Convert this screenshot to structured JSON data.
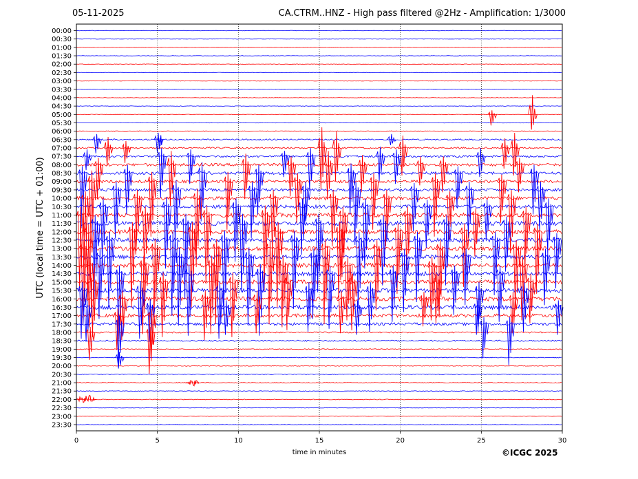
{
  "header": {
    "date": "05-11-2025",
    "title": "CA.CTRM..HNZ - High pass filtered @2Hz - Amplification: 1/3000"
  },
  "credit": "©ICGC 2025",
  "chart_data": {
    "type": "line",
    "subtype": "helicorder",
    "xlabel": "time in minutes",
    "ylabel": "UTC (local time = UTC + 01:00)",
    "xlim": [
      0,
      30
    ],
    "xticks": [
      0,
      5,
      10,
      15,
      20,
      25,
      30
    ],
    "grid": "vertical dotted lines at 5, 10, 15, 20, 25",
    "trace_colors": [
      "#ff0000",
      "#0000ff"
    ],
    "row_labels": [
      "00:00",
      "00:30",
      "01:00",
      "01:30",
      "02:00",
      "02:30",
      "03:00",
      "03:30",
      "04:00",
      "04:30",
      "05:00",
      "05:30",
      "06:00",
      "06:30",
      "07:00",
      "07:30",
      "08:00",
      "08:30",
      "09:00",
      "09:30",
      "10:00",
      "10:30",
      "11:00",
      "11:30",
      "12:00",
      "12:30",
      "13:00",
      "13:30",
      "14:00",
      "14:30",
      "15:00",
      "15:30",
      "16:00",
      "16:30",
      "17:00",
      "17:30",
      "18:00",
      "18:30",
      "19:00",
      "19:30",
      "20:00",
      "20:30",
      "21:00",
      "21:30",
      "22:00",
      "22:30",
      "23:00",
      "23:30"
    ],
    "row_colors": [
      "#0000ff",
      "#0000ff",
      "#ff0000",
      "#0000ff",
      "#ff0000",
      "#0000ff",
      "#ff0000",
      "#0000ff",
      "#ff0000",
      "#0000ff",
      "#ff0000",
      "#0000ff",
      "#ff0000",
      "#0000ff",
      "#ff0000",
      "#0000ff",
      "#ff0000",
      "#0000ff",
      "#ff0000",
      "#0000ff",
      "#ff0000",
      "#0000ff",
      "#ff0000",
      "#0000ff",
      "#ff0000",
      "#0000ff",
      "#ff0000",
      "#0000ff",
      "#ff0000",
      "#0000ff",
      "#ff0000",
      "#0000ff",
      "#ff0000",
      "#0000ff",
      "#ff0000",
      "#0000ff",
      "#ff0000",
      "#0000ff",
      "#ff0000",
      "#0000ff",
      "#ff0000",
      "#0000ff",
      "#ff0000",
      "#0000ff",
      "#ff0000",
      "#0000ff",
      "#ff0000",
      "#0000ff"
    ],
    "row_noise": [
      0.3,
      0.3,
      0.3,
      0.3,
      0.3,
      0.3,
      0.3,
      0.3,
      0.3,
      0.3,
      0.3,
      0.2,
      0.6,
      1.0,
      1.2,
      1.5,
      2.0,
      2.0,
      2.0,
      2.0,
      2.5,
      2.5,
      3.0,
      3.0,
      3.0,
      3.0,
      3.0,
      3.0,
      3.0,
      3.0,
      3.0,
      3.0,
      3.0,
      3.0,
      2.5,
      2.0,
      1.0,
      1.0,
      0.6,
      0.5,
      0.5,
      0.5,
      0.5,
      0.5,
      0.5,
      0.3,
      0.3,
      0.3
    ],
    "spikes": [
      {
        "row": 10,
        "x": 25.6,
        "up": 6,
        "down": 16
      },
      {
        "row": 10,
        "x": 28.1,
        "up": 28,
        "down": 22
      },
      {
        "row": 13,
        "x": 1.2,
        "up": 8,
        "down": 20
      },
      {
        "row": 13,
        "x": 5.0,
        "up": 10,
        "down": 20
      },
      {
        "row": 13,
        "x": 19.4,
        "up": 8,
        "down": 8
      },
      {
        "row": 14,
        "x": 1.9,
        "up": 16,
        "down": 26
      },
      {
        "row": 14,
        "x": 3.0,
        "up": 10,
        "down": 22
      },
      {
        "row": 14,
        "x": 15.1,
        "up": 30,
        "down": 60
      },
      {
        "row": 14,
        "x": 16.0,
        "up": 24,
        "down": 48
      },
      {
        "row": 14,
        "x": 20.1,
        "up": 18,
        "down": 40
      },
      {
        "row": 14,
        "x": 26.4,
        "up": 14,
        "down": 30
      },
      {
        "row": 14,
        "x": 27.0,
        "up": 22,
        "down": 40
      },
      {
        "row": 15,
        "x": 0.6,
        "up": 10,
        "down": 20
      },
      {
        "row": 15,
        "x": 5.2,
        "up": 12,
        "down": 60
      },
      {
        "row": 15,
        "x": 7.0,
        "up": 10,
        "down": 40
      },
      {
        "row": 15,
        "x": 12.8,
        "up": 8,
        "down": 30
      },
      {
        "row": 15,
        "x": 14.4,
        "up": 12,
        "down": 50
      },
      {
        "row": 15,
        "x": 18.7,
        "up": 14,
        "down": 36
      },
      {
        "row": 15,
        "x": 19.7,
        "up": 10,
        "down": 40
      },
      {
        "row": 15,
        "x": 24.9,
        "up": 12,
        "down": 30
      },
      {
        "row": 16,
        "x": 1.3,
        "up": 10,
        "down": 50
      },
      {
        "row": 16,
        "x": 5.8,
        "up": 20,
        "down": 60
      },
      {
        "row": 16,
        "x": 10.4,
        "up": 16,
        "down": 50
      },
      {
        "row": 16,
        "x": 13.2,
        "up": 12,
        "down": 46
      },
      {
        "row": 16,
        "x": 15.5,
        "up": 20,
        "down": 50
      },
      {
        "row": 16,
        "x": 17.6,
        "up": 14,
        "down": 40
      },
      {
        "row": 16,
        "x": 21.2,
        "up": 12,
        "down": 30
      },
      {
        "row": 16,
        "x": 22.6,
        "up": 12,
        "down": 40
      },
      {
        "row": 16,
        "x": 27.3,
        "up": 10,
        "down": 40
      },
      {
        "row": 17,
        "x": 0.3,
        "up": 10,
        "down": 80
      },
      {
        "row": 17,
        "x": 3.1,
        "up": 12,
        "down": 60
      },
      {
        "row": 17,
        "x": 7.7,
        "up": 16,
        "down": 70
      },
      {
        "row": 17,
        "x": 11.2,
        "up": 12,
        "down": 60
      },
      {
        "row": 17,
        "x": 16.9,
        "up": 14,
        "down": 60
      },
      {
        "row": 17,
        "x": 23.5,
        "up": 10,
        "down": 50
      },
      {
        "row": 17,
        "x": 28.2,
        "up": 12,
        "down": 60
      },
      {
        "row": 18,
        "x": 0.9,
        "up": 16,
        "down": 90
      },
      {
        "row": 18,
        "x": 4.6,
        "up": 14,
        "down": 80
      },
      {
        "row": 18,
        "x": 9.3,
        "up": 14,
        "down": 70
      },
      {
        "row": 18,
        "x": 13.6,
        "up": 12,
        "down": 60
      },
      {
        "row": 18,
        "x": 18.3,
        "up": 12,
        "down": 70
      },
      {
        "row": 18,
        "x": 22.1,
        "up": 12,
        "down": 80
      },
      {
        "row": 18,
        "x": 26.2,
        "up": 10,
        "down": 60
      },
      {
        "row": 19,
        "x": 2.4,
        "up": 12,
        "down": 70
      },
      {
        "row": 19,
        "x": 6.1,
        "up": 14,
        "down": 80
      },
      {
        "row": 19,
        "x": 10.8,
        "up": 12,
        "down": 70
      },
      {
        "row": 19,
        "x": 14.1,
        "up": 12,
        "down": 50
      },
      {
        "row": 19,
        "x": 17.2,
        "up": 12,
        "down": 80
      },
      {
        "row": 19,
        "x": 20.8,
        "up": 10,
        "down": 60
      },
      {
        "row": 19,
        "x": 24.2,
        "up": 12,
        "down": 70
      },
      {
        "row": 19,
        "x": 28.6,
        "up": 12,
        "down": 60
      },
      {
        "row": 20,
        "x": 0.5,
        "up": 10,
        "down": 90
      },
      {
        "row": 20,
        "x": 3.7,
        "up": 12,
        "down": 70
      },
      {
        "row": 20,
        "x": 7.4,
        "up": 14,
        "down": 100
      },
      {
        "row": 20,
        "x": 12.1,
        "up": 12,
        "down": 80
      },
      {
        "row": 20,
        "x": 15.8,
        "up": 12,
        "down": 70
      },
      {
        "row": 20,
        "x": 19.1,
        "up": 12,
        "down": 70
      },
      {
        "row": 20,
        "x": 23.0,
        "up": 10,
        "down": 60
      },
      {
        "row": 20,
        "x": 26.8,
        "up": 12,
        "down": 80
      },
      {
        "row": 21,
        "x": 1.6,
        "up": 12,
        "down": 80
      },
      {
        "row": 21,
        "x": 5.5,
        "up": 14,
        "down": 90
      },
      {
        "row": 21,
        "x": 9.8,
        "up": 12,
        "down": 80
      },
      {
        "row": 21,
        "x": 13.9,
        "up": 12,
        "down": 70
      },
      {
        "row": 21,
        "x": 17.8,
        "up": 12,
        "down": 90
      },
      {
        "row": 21,
        "x": 21.6,
        "up": 10,
        "down": 60
      },
      {
        "row": 21,
        "x": 25.3,
        "up": 10,
        "down": 50
      },
      {
        "row": 21,
        "x": 29.1,
        "up": 12,
        "down": 70
      },
      {
        "row": 22,
        "x": 0.2,
        "up": 12,
        "down": 110
      },
      {
        "row": 22,
        "x": 4.2,
        "up": 12,
        "down": 80
      },
      {
        "row": 22,
        "x": 8.0,
        "up": 14,
        "down": 100
      },
      {
        "row": 22,
        "x": 11.6,
        "up": 14,
        "down": 110
      },
      {
        "row": 22,
        "x": 16.4,
        "up": 12,
        "down": 90
      },
      {
        "row": 22,
        "x": 20.4,
        "up": 12,
        "down": 80
      },
      {
        "row": 22,
        "x": 24.6,
        "up": 10,
        "down": 60
      },
      {
        "row": 22,
        "x": 27.7,
        "up": 12,
        "down": 80
      },
      {
        "row": 23,
        "x": 1.1,
        "up": 12,
        "down": 110
      },
      {
        "row": 23,
        "x": 6.7,
        "up": 14,
        "down": 110
      },
      {
        "row": 23,
        "x": 10.2,
        "up": 14,
        "down": 100
      },
      {
        "row": 23,
        "x": 14.9,
        "up": 14,
        "down": 100
      },
      {
        "row": 23,
        "x": 18.9,
        "up": 12,
        "down": 90
      },
      {
        "row": 23,
        "x": 22.8,
        "up": 12,
        "down": 90
      },
      {
        "row": 23,
        "x": 26.5,
        "up": 10,
        "down": 70
      },
      {
        "row": 24,
        "x": 0.7,
        "up": 12,
        "down": 100
      },
      {
        "row": 24,
        "x": 3.4,
        "up": 14,
        "down": 110
      },
      {
        "row": 24,
        "x": 7.1,
        "up": 14,
        "down": 110
      },
      {
        "row": 24,
        "x": 12.4,
        "up": 14,
        "down": 110
      },
      {
        "row": 24,
        "x": 16.2,
        "up": 14,
        "down": 100
      },
      {
        "row": 24,
        "x": 19.8,
        "up": 12,
        "down": 90
      },
      {
        "row": 24,
        "x": 23.9,
        "up": 12,
        "down": 80
      },
      {
        "row": 24,
        "x": 28.4,
        "up": 12,
        "down": 90
      },
      {
        "row": 25,
        "x": 2.0,
        "up": 12,
        "down": 100
      },
      {
        "row": 25,
        "x": 5.9,
        "up": 14,
        "down": 110
      },
      {
        "row": 25,
        "x": 9.1,
        "up": 14,
        "down": 110
      },
      {
        "row": 25,
        "x": 13.4,
        "up": 14,
        "down": 100
      },
      {
        "row": 25,
        "x": 17.4,
        "up": 12,
        "down": 100
      },
      {
        "row": 25,
        "x": 21.0,
        "up": 12,
        "down": 90
      },
      {
        "row": 25,
        "x": 25.8,
        "up": 12,
        "down": 80
      },
      {
        "row": 25,
        "x": 29.6,
        "up": 10,
        "down": 70
      },
      {
        "row": 26,
        "x": 0.4,
        "up": 12,
        "down": 110
      },
      {
        "row": 26,
        "x": 4.8,
        "up": 14,
        "down": 110
      },
      {
        "row": 26,
        "x": 8.6,
        "up": 14,
        "down": 110
      },
      {
        "row": 26,
        "x": 11.9,
        "up": 14,
        "down": 110
      },
      {
        "row": 26,
        "x": 15.3,
        "up": 14,
        "down": 110
      },
      {
        "row": 26,
        "x": 18.5,
        "up": 12,
        "down": 90
      },
      {
        "row": 26,
        "x": 22.4,
        "up": 12,
        "down": 100
      },
      {
        "row": 26,
        "x": 27.1,
        "up": 12,
        "down": 90
      },
      {
        "row": 27,
        "x": 1.4,
        "up": 12,
        "down": 90
      },
      {
        "row": 27,
        "x": 6.3,
        "up": 14,
        "down": 100
      },
      {
        "row": 27,
        "x": 10.6,
        "up": 14,
        "down": 100
      },
      {
        "row": 27,
        "x": 14.6,
        "up": 12,
        "down": 90
      },
      {
        "row": 27,
        "x": 20.2,
        "up": 12,
        "down": 80
      },
      {
        "row": 27,
        "x": 24.0,
        "up": 12,
        "down": 70
      },
      {
        "row": 27,
        "x": 28.9,
        "up": 12,
        "down": 70
      },
      {
        "row": 28,
        "x": 0.8,
        "up": 12,
        "down": 90
      },
      {
        "row": 28,
        "x": 4.1,
        "up": 14,
        "down": 100
      },
      {
        "row": 28,
        "x": 8.3,
        "up": 14,
        "down": 100
      },
      {
        "row": 28,
        "x": 12.7,
        "up": 14,
        "down": 90
      },
      {
        "row": 28,
        "x": 16.7,
        "up": 12,
        "down": 80
      },
      {
        "row": 28,
        "x": 21.9,
        "up": 12,
        "down": 80
      },
      {
        "row": 28,
        "x": 27.5,
        "up": 12,
        "down": 80
      },
      {
        "row": 29,
        "x": 2.6,
        "up": 12,
        "down": 90
      },
      {
        "row": 29,
        "x": 6.9,
        "up": 14,
        "down": 90
      },
      {
        "row": 29,
        "x": 11.3,
        "up": 14,
        "down": 90
      },
      {
        "row": 29,
        "x": 15.6,
        "up": 12,
        "down": 80
      },
      {
        "row": 29,
        "x": 19.5,
        "up": 12,
        "down": 70
      },
      {
        "row": 29,
        "x": 23.3,
        "up": 12,
        "down": 60
      },
      {
        "row": 29,
        "x": 26.1,
        "up": 12,
        "down": 70
      },
      {
        "row": 30,
        "x": 1.0,
        "up": 12,
        "down": 80
      },
      {
        "row": 30,
        "x": 5.3,
        "up": 14,
        "down": 80
      },
      {
        "row": 30,
        "x": 9.6,
        "up": 14,
        "down": 80
      },
      {
        "row": 30,
        "x": 13.0,
        "up": 12,
        "down": 70
      },
      {
        "row": 30,
        "x": 17.0,
        "up": 12,
        "down": 70
      },
      {
        "row": 30,
        "x": 22.2,
        "up": 12,
        "down": 60
      },
      {
        "row": 30,
        "x": 28.0,
        "up": 12,
        "down": 60
      },
      {
        "row": 31,
        "x": 0.3,
        "up": 12,
        "down": 70
      },
      {
        "row": 31,
        "x": 3.9,
        "up": 14,
        "down": 70
      },
      {
        "row": 31,
        "x": 8.8,
        "up": 14,
        "down": 70
      },
      {
        "row": 31,
        "x": 14.3,
        "up": 12,
        "down": 60
      },
      {
        "row": 31,
        "x": 18.1,
        "up": 12,
        "down": 60
      },
      {
        "row": 31,
        "x": 24.8,
        "up": 12,
        "down": 60
      },
      {
        "row": 31,
        "x": 27.6,
        "up": 12,
        "down": 60
      },
      {
        "row": 32,
        "x": 2.8,
        "up": 12,
        "down": 60
      },
      {
        "row": 32,
        "x": 7.9,
        "up": 12,
        "down": 60
      },
      {
        "row": 32,
        "x": 11.1,
        "up": 12,
        "down": 50
      },
      {
        "row": 32,
        "x": 16.3,
        "up": 12,
        "down": 50
      },
      {
        "row": 32,
        "x": 21.4,
        "up": 10,
        "down": 40
      },
      {
        "row": 32,
        "x": 26.9,
        "up": 10,
        "down": 50
      },
      {
        "row": 33,
        "x": 0.6,
        "up": 10,
        "down": 50
      },
      {
        "row": 33,
        "x": 4.5,
        "up": 12,
        "down": 50
      },
      {
        "row": 33,
        "x": 9.2,
        "up": 10,
        "down": 40
      },
      {
        "row": 33,
        "x": 17.3,
        "up": 10,
        "down": 40
      },
      {
        "row": 33,
        "x": 24.7,
        "up": 10,
        "down": 40
      },
      {
        "row": 33,
        "x": 29.7,
        "up": 10,
        "down": 40
      },
      {
        "row": 34,
        "x": 2.5,
        "up": 10,
        "down": 50
      },
      {
        "row": 34,
        "x": 4.6,
        "up": 10,
        "down": 60
      },
      {
        "row": 35,
        "x": 2.6,
        "up": 12,
        "down": 60
      },
      {
        "row": 35,
        "x": 25.1,
        "up": 10,
        "down": 50
      },
      {
        "row": 35,
        "x": 26.7,
        "up": 10,
        "down": 60
      },
      {
        "row": 36,
        "x": 0.8,
        "up": 8,
        "down": 40
      },
      {
        "row": 36,
        "x": 4.5,
        "up": 8,
        "down": 60
      },
      {
        "row": 39,
        "x": 2.6,
        "up": 8,
        "down": 16
      }
    ],
    "bursts": [
      {
        "row": 13,
        "x": 5.2,
        "width": 0.4,
        "amp": 10
      },
      {
        "row": 42,
        "x": 7.2,
        "width": 0.8,
        "amp": 5
      },
      {
        "row": 44,
        "x": 0.6,
        "width": 1.2,
        "amp": 7
      }
    ],
    "flat_segments": [
      {
        "row": 11,
        "x_start": 0,
        "x_end": 2.4
      }
    ]
  }
}
